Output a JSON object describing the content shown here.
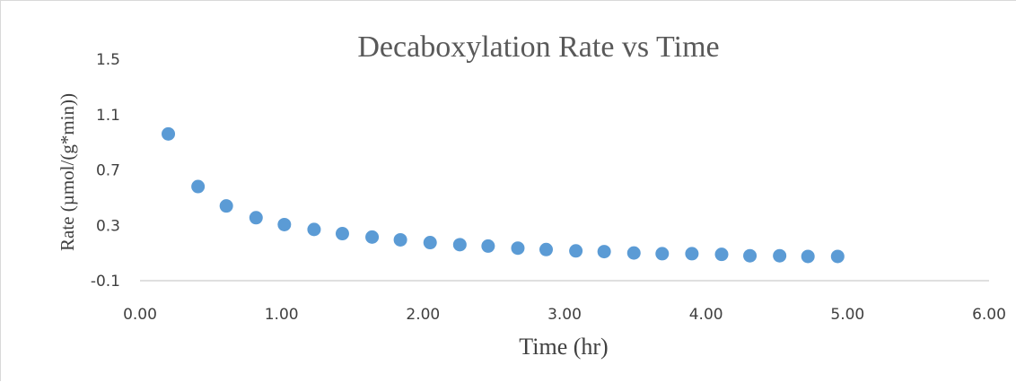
{
  "chart_data": {
    "type": "scatter",
    "title": "Decaboxylation Rate vs Time",
    "xlabel": "Time (hr)",
    "ylabel": "Rate (µmol/(g*min))",
    "xlim": [
      0,
      6
    ],
    "ylim": [
      -0.1,
      1.5
    ],
    "xticks": [
      0,
      1,
      2,
      3,
      4,
      5,
      6
    ],
    "xtick_labels": [
      "0.00",
      "1.00",
      "2.00",
      "3.00",
      "4.00",
      "5.00",
      "6.00"
    ],
    "yticks": [
      -0.1,
      0.3,
      0.7,
      1.1,
      1.5
    ],
    "ytick_labels": [
      "-0.1",
      "0.3",
      "0.7",
      "1.1",
      "1.5"
    ],
    "grid": false,
    "legend": "none",
    "marker_color": "#5b9bd5",
    "series": [
      {
        "x": [
          0.2,
          0.41,
          0.61,
          0.82,
          1.02,
          1.23,
          1.43,
          1.64,
          1.84,
          2.05,
          2.26,
          2.46,
          2.67,
          2.87,
          3.08,
          3.28,
          3.49,
          3.69,
          3.9,
          4.11,
          4.31,
          4.52,
          4.72,
          4.93
        ],
        "y": [
          0.96,
          0.58,
          0.44,
          0.355,
          0.305,
          0.27,
          0.24,
          0.215,
          0.195,
          0.175,
          0.16,
          0.15,
          0.135,
          0.125,
          0.115,
          0.11,
          0.1,
          0.095,
          0.095,
          0.09,
          0.08,
          0.08,
          0.075,
          0.075
        ]
      }
    ]
  }
}
